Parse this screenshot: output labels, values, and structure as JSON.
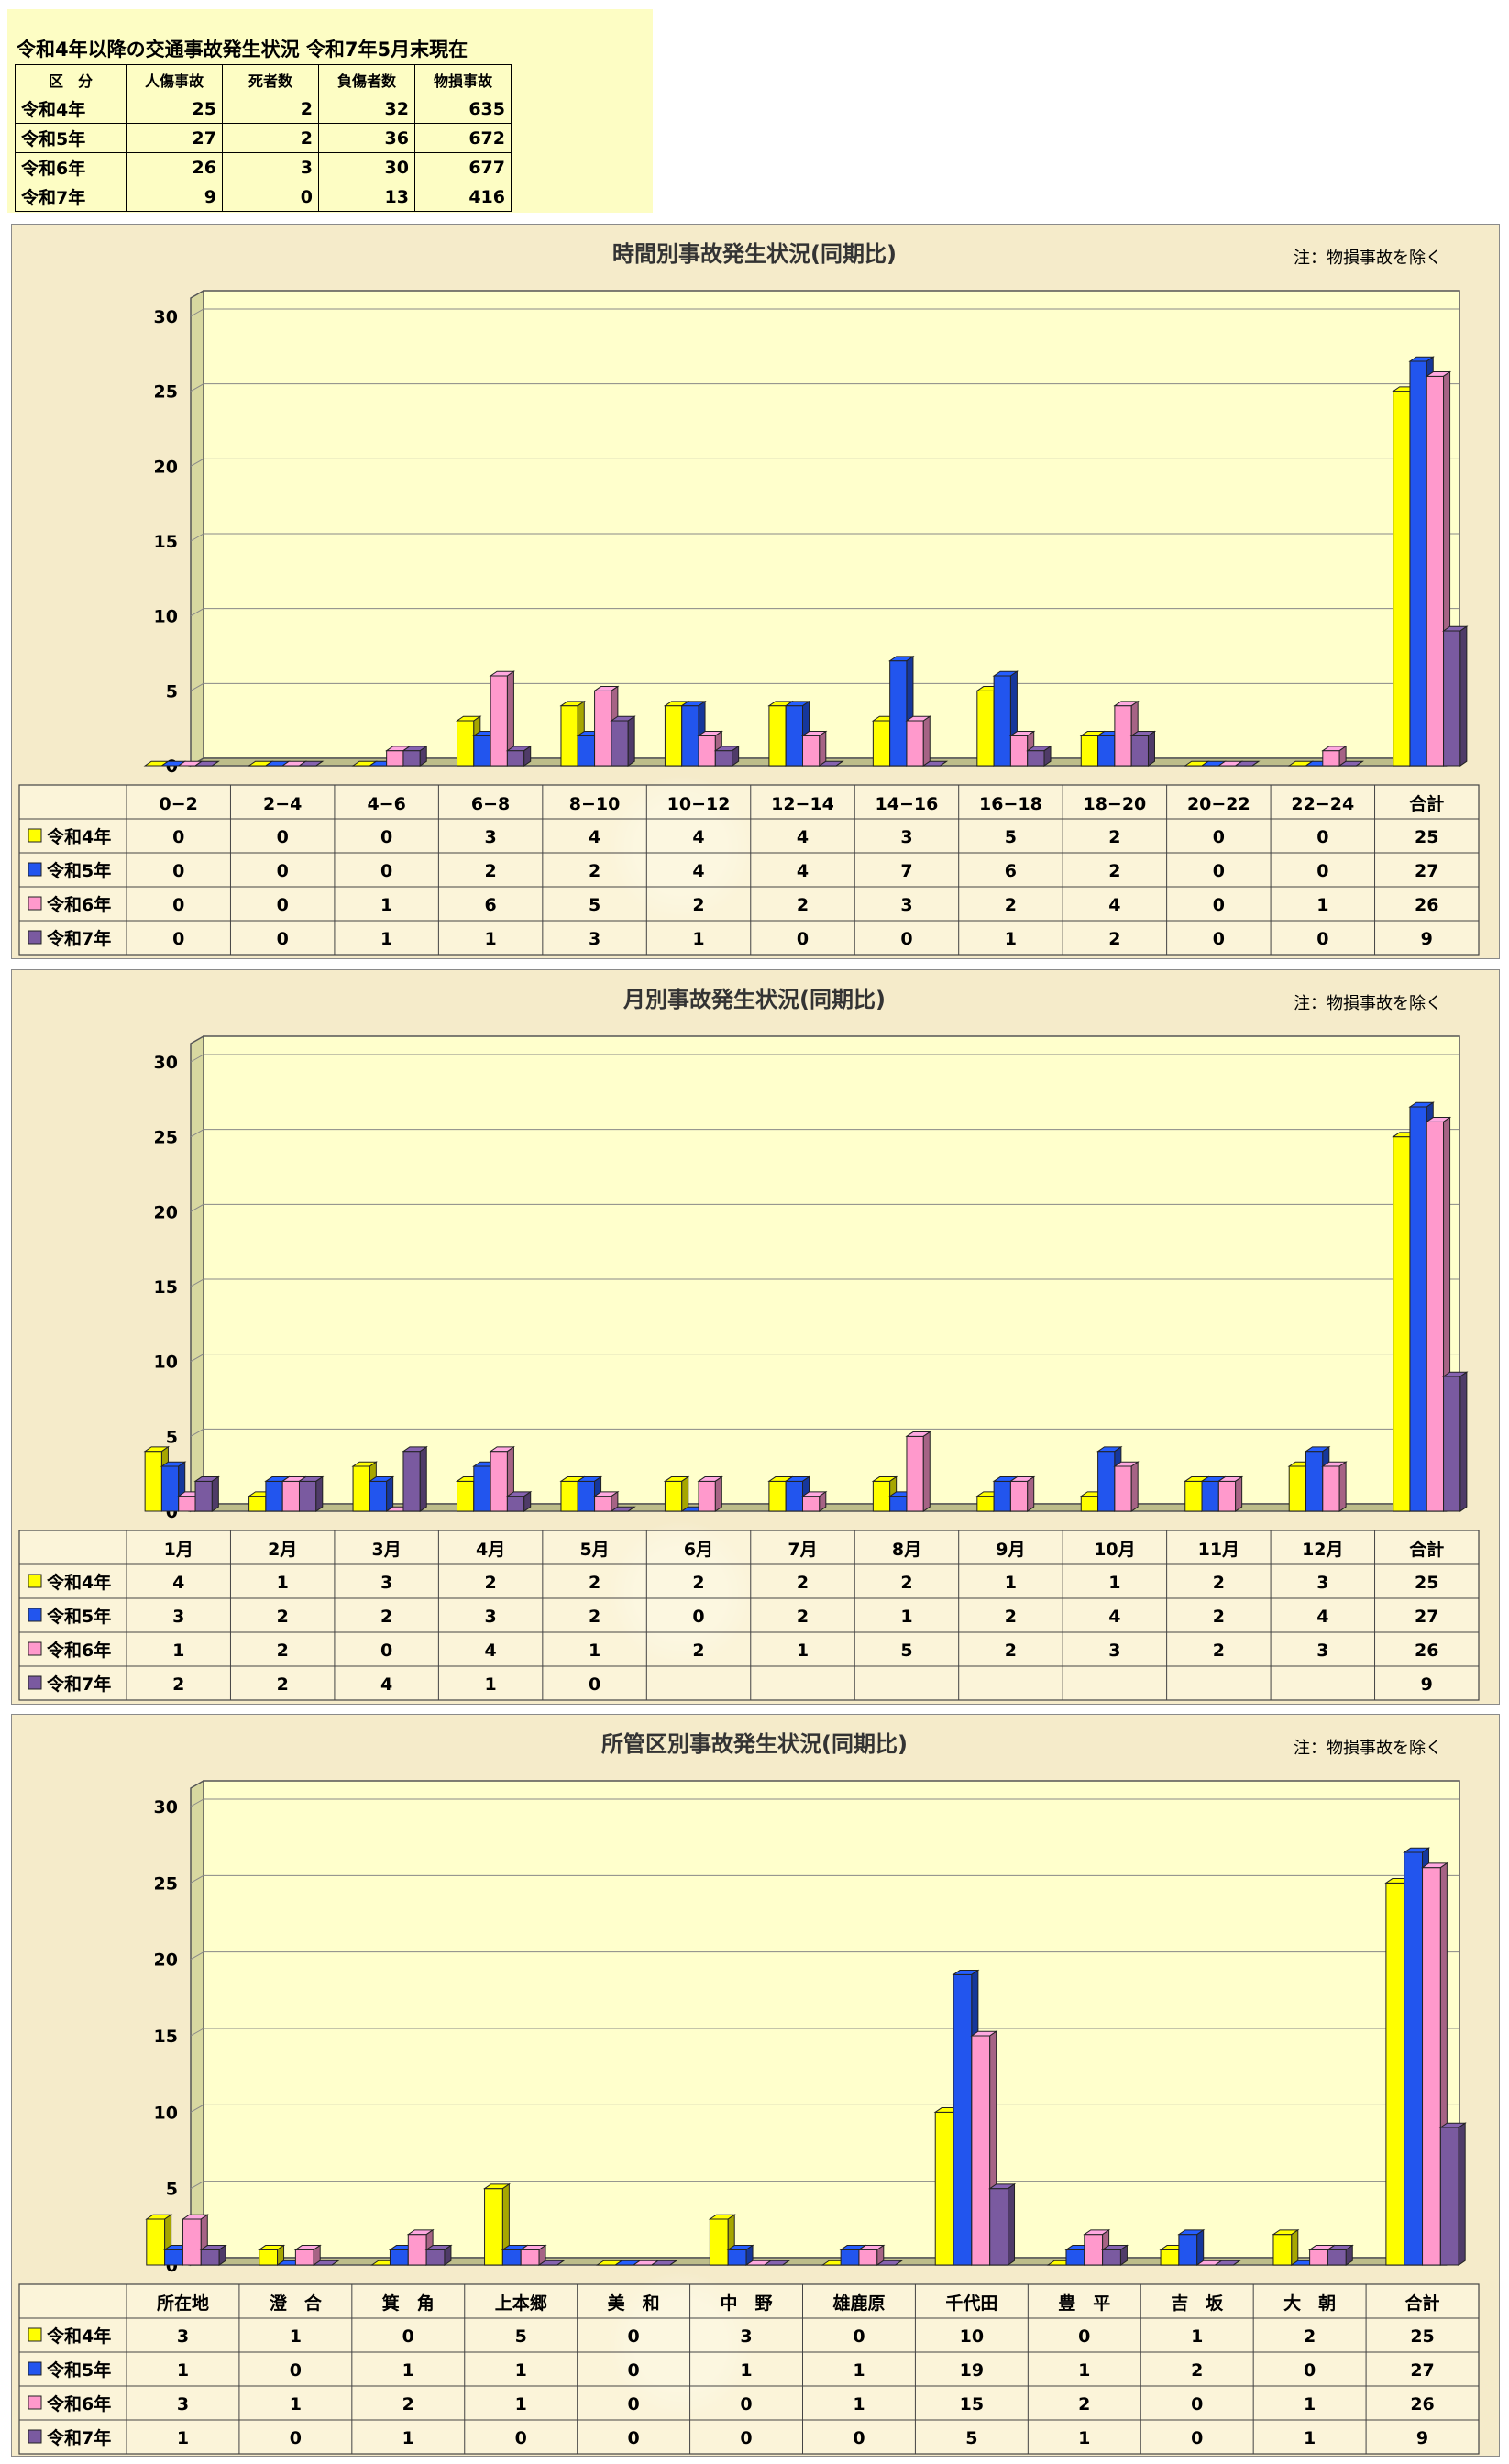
{
  "summary": {
    "title": "令和4年以降の交通事故発生状況  令和7年5月末現在",
    "headers": [
      "区　分",
      "人傷事故",
      "死者数",
      "負傷者数",
      "物損事故"
    ],
    "rows": [
      {
        "label": "令和4年",
        "values": [
          "25",
          "2",
          "32",
          "635"
        ]
      },
      {
        "label": "令和5年",
        "values": [
          "27",
          "2",
          "36",
          "672"
        ]
      },
      {
        "label": "令和6年",
        "values": [
          "26",
          "3",
          "30",
          "677"
        ]
      },
      {
        "label": "令和7年",
        "values": [
          "9",
          "0",
          "13",
          "416"
        ]
      }
    ]
  },
  "colors": {
    "y2022": "#ffff00",
    "y2023": "#2255ee",
    "y2024": "#ff99cc",
    "y2025": "#7a5aa0",
    "wall": "#ffffcc"
  },
  "chart_data": [
    {
      "type": "bar",
      "title": "時間別事故発生状況(同期比)",
      "note": "注：物損事故を除く",
      "ylim": [
        0,
        30
      ],
      "yticks": [
        "0",
        "5",
        "10",
        "15",
        "20",
        "25",
        "30"
      ],
      "categories": [
        "0−2",
        "2−4",
        "4−6",
        "6−8",
        "8−10",
        "10−12",
        "12−14",
        "14−16",
        "16−18",
        "18−20",
        "20−22",
        "22−24",
        "合計"
      ],
      "series": [
        {
          "name": "令和4年",
          "values": [
            0,
            0,
            0,
            3,
            4,
            4,
            4,
            3,
            5,
            2,
            0,
            0,
            25
          ],
          "labels": [
            "0",
            "0",
            "0",
            "3",
            "4",
            "4",
            "4",
            "3",
            "5",
            "2",
            "0",
            "0",
            "25"
          ]
        },
        {
          "name": "令和5年",
          "values": [
            0,
            0,
            0,
            2,
            2,
            4,
            4,
            7,
            6,
            2,
            0,
            0,
            27
          ],
          "labels": [
            "0",
            "0",
            "0",
            "2",
            "2",
            "4",
            "4",
            "7",
            "6",
            "2",
            "0",
            "0",
            "27"
          ]
        },
        {
          "name": "令和6年",
          "values": [
            0,
            0,
            1,
            6,
            5,
            2,
            2,
            3,
            2,
            4,
            0,
            1,
            26
          ],
          "labels": [
            "0",
            "0",
            "1",
            "6",
            "5",
            "2",
            "2",
            "3",
            "2",
            "4",
            "0",
            "1",
            "26"
          ]
        },
        {
          "name": "令和7年",
          "values": [
            0,
            0,
            1,
            1,
            3,
            1,
            0,
            0,
            1,
            2,
            0,
            0,
            9
          ],
          "labels": [
            "0",
            "0",
            "1",
            "1",
            "3",
            "1",
            "0",
            "0",
            "1",
            "2",
            "0",
            "0",
            "9"
          ]
        }
      ]
    },
    {
      "type": "bar",
      "title": "月別事故発生状況(同期比)",
      "note": "注：物損事故を除く",
      "ylim": [
        0,
        30
      ],
      "yticks": [
        "0",
        "5",
        "10",
        "15",
        "20",
        "25",
        "30"
      ],
      "categories": [
        "1月",
        "2月",
        "3月",
        "4月",
        "5月",
        "6月",
        "7月",
        "8月",
        "9月",
        "10月",
        "11月",
        "12月",
        "合計"
      ],
      "series": [
        {
          "name": "令和4年",
          "values": [
            4,
            1,
            3,
            2,
            2,
            2,
            2,
            2,
            1,
            1,
            2,
            3,
            25
          ],
          "labels": [
            "4",
            "1",
            "3",
            "2",
            "2",
            "2",
            "2",
            "2",
            "1",
            "1",
            "2",
            "3",
            "25"
          ]
        },
        {
          "name": "令和5年",
          "values": [
            3,
            2,
            2,
            3,
            2,
            0,
            2,
            1,
            2,
            4,
            2,
            4,
            27
          ],
          "labels": [
            "3",
            "2",
            "2",
            "3",
            "2",
            "0",
            "2",
            "1",
            "2",
            "4",
            "2",
            "4",
            "27"
          ]
        },
        {
          "name": "令和6年",
          "values": [
            1,
            2,
            0,
            4,
            1,
            2,
            1,
            5,
            2,
            3,
            2,
            3,
            26
          ],
          "labels": [
            "1",
            "2",
            "0",
            "4",
            "1",
            "2",
            "1",
            "5",
            "2",
            "3",
            "2",
            "3",
            "26"
          ]
        },
        {
          "name": "令和7年",
          "values": [
            2,
            2,
            4,
            1,
            0,
            null,
            null,
            null,
            null,
            null,
            null,
            null,
            9
          ],
          "labels": [
            "2",
            "2",
            "4",
            "1",
            "0",
            "",
            "",
            "",
            "",
            "",
            "",
            "",
            "9"
          ]
        }
      ]
    },
    {
      "type": "bar",
      "title": "所管区別事故発生状況(同期比)",
      "note": "注：物損事故を除く",
      "ylim": [
        0,
        30
      ],
      "yticks": [
        "0",
        "5",
        "10",
        "15",
        "20",
        "25",
        "30"
      ],
      "categories": [
        "所在地",
        "澄　合",
        "箕　角",
        "上本郷",
        "美　和",
        "中　野",
        "雄鹿原",
        "千代田",
        "豊　平",
        "吉　坂",
        "大　朝",
        "合計"
      ],
      "series": [
        {
          "name": "令和4年",
          "values": [
            3,
            1,
            0,
            5,
            0,
            3,
            0,
            10,
            0,
            1,
            2,
            25
          ],
          "labels": [
            "3",
            "1",
            "0",
            "5",
            "0",
            "3",
            "0",
            "10",
            "0",
            "1",
            "2",
            "25"
          ]
        },
        {
          "name": "令和5年",
          "values": [
            1,
            0,
            1,
            1,
            0,
            1,
            1,
            19,
            1,
            2,
            0,
            27
          ],
          "labels": [
            "1",
            "0",
            "1",
            "1",
            "0",
            "1",
            "1",
            "19",
            "1",
            "2",
            "0",
            "27"
          ]
        },
        {
          "name": "令和6年",
          "values": [
            3,
            1,
            2,
            1,
            0,
            0,
            1,
            15,
            2,
            0,
            1,
            26
          ],
          "labels": [
            "3",
            "1",
            "2",
            "1",
            "0",
            "0",
            "1",
            "15",
            "2",
            "0",
            "1",
            "26"
          ]
        },
        {
          "name": "令和7年",
          "values": [
            1,
            0,
            1,
            0,
            0,
            0,
            0,
            5,
            1,
            0,
            1,
            9
          ],
          "labels": [
            "1",
            "0",
            "1",
            "0",
            "0",
            "0",
            "0",
            "5",
            "1",
            "0",
            "1",
            "9"
          ]
        }
      ]
    }
  ]
}
